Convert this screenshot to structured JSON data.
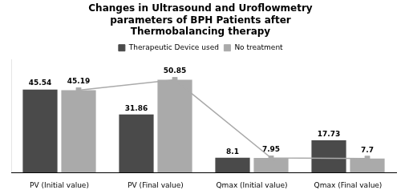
{
  "chart_data": {
    "type": "bar",
    "title": "Changes in Ultrasound and Uroflowmetry\nparameters of BPH Patients after\nThermobalancing therapy",
    "categories": [
      "PV (Initial value)",
      "PV (Final value)",
      "Qmax (Initial value)",
      "Qmax (Final value)"
    ],
    "series": [
      {
        "name": "Therapeutic Device used",
        "color": "#4a4a4a",
        "values": [
          45.54,
          31.86,
          8.1,
          17.73
        ]
      },
      {
        "name": "No treatment",
        "color": "#aaaaaa",
        "values": [
          45.19,
          50.85,
          7.95,
          7.7
        ],
        "marker": "square",
        "line_style": "solid"
      }
    ],
    "ylim": [
      0,
      62
    ],
    "grid": false,
    "legend": "top",
    "data_labels": true,
    "tick_labels": "x"
  }
}
